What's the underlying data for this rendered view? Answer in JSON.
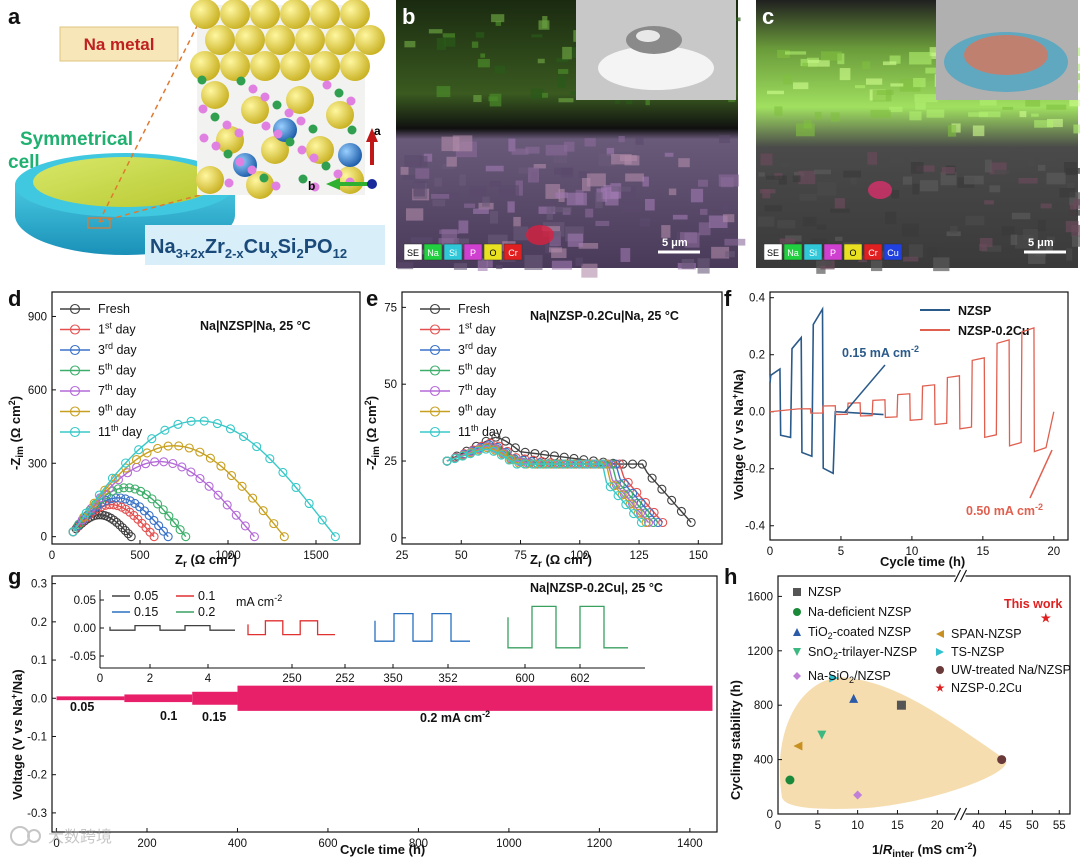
{
  "panels": {
    "a": {
      "label": "a",
      "na_metal": "Na metal",
      "cell_line1": "Symmetrical",
      "cell_line2": "cell",
      "formula": "Na3+2xZr2-xCuxSi2PO12",
      "axis_a": "a",
      "axis_b": "b"
    },
    "b": {
      "label": "b",
      "scale": "5 μm",
      "legend": [
        "SE",
        "Na",
        "Si",
        "P",
        "O",
        "Cr"
      ]
    },
    "c": {
      "label": "c",
      "scale": "5 μm",
      "legend": [
        "SE",
        "Na",
        "Si",
        "P",
        "O",
        "Cr",
        "Cu"
      ]
    }
  },
  "colors": {
    "fresh": "#404040",
    "d1": "#e45050",
    "d3": "#3a72c8",
    "d5": "#3cae6a",
    "d7": "#b46ad8",
    "d9": "#c8a020",
    "d11": "#38c8c8",
    "nzsp": "#2a5a8a",
    "nzsp_cu": "#e06050",
    "g_trace": "#e8206a",
    "blob": "#f5ddb0",
    "elem": [
      "#ffffff",
      "#20d040",
      "#30c8d8",
      "#d040d0",
      "#e8e020",
      "#e02020",
      "#2040e0"
    ]
  },
  "watermark": "大数跨境",
  "chart_data": [
    {
      "id": "d",
      "label": "d",
      "type": "line",
      "annotation": "Na|NZSP|Na, 25 °C",
      "xlabel": "Zr (Ω cm2)",
      "ylabel": "-Zim (Ω cm2)",
      "xlim": [
        0,
        1750
      ],
      "ylim": [
        -30,
        1000
      ],
      "xticks": [
        0,
        500,
        1000,
        1500
      ],
      "yticks": [
        0,
        300,
        600,
        900
      ],
      "legend": [
        "Fresh",
        "1st day",
        "3rd day",
        "5th day",
        "7th day",
        "9th day",
        "11th day"
      ],
      "series": [
        {
          "name": "Fresh",
          "x_start": 120,
          "x_end": 450,
          "peak": 85
        },
        {
          "name": "1st day",
          "x_start": 120,
          "x_end": 580,
          "peak": 130
        },
        {
          "name": "3rd day",
          "x_start": 120,
          "x_end": 660,
          "peak": 160
        },
        {
          "name": "5th day",
          "x_start": 120,
          "x_end": 760,
          "peak": 205
        },
        {
          "name": "7th day",
          "x_start": 120,
          "x_end": 1150,
          "peak": 320
        },
        {
          "name": "9th day",
          "x_start": 120,
          "x_end": 1320,
          "peak": 390
        },
        {
          "name": "11th day",
          "x_start": 120,
          "x_end": 1610,
          "peak": 500
        }
      ]
    },
    {
      "id": "e",
      "label": "e",
      "type": "line",
      "annotation": "Na|NZSP-0.2Cu|Na, 25 °C",
      "xlabel": "Zr (Ω cm2)",
      "ylabel": "-Zim (Ω cm2)",
      "xlim": [
        25,
        160
      ],
      "ylim": [
        -2,
        80
      ],
      "xticks": [
        25,
        50,
        75,
        100,
        125,
        150
      ],
      "yticks": [
        0,
        25,
        50,
        75
      ],
      "legend": [
        "Fresh",
        "1st day",
        "3rd day",
        "5th day",
        "7th day",
        "9th day",
        "11th day"
      ],
      "series": [
        {
          "name": "Fresh",
          "x_end": 147,
          "h": 33
        },
        {
          "name": "1st day",
          "x_end": 135,
          "h": 31
        },
        {
          "name": "3rd day",
          "x_end": 133,
          "h": 30.5
        },
        {
          "name": "5th day",
          "x_end": 131,
          "h": 30
        },
        {
          "name": "7th day",
          "x_end": 129,
          "h": 30
        },
        {
          "name": "9th day",
          "x_end": 128,
          "h": 29.5
        },
        {
          "name": "11th day",
          "x_end": 126,
          "h": 29
        }
      ]
    },
    {
      "id": "f",
      "label": "f",
      "type": "line",
      "xlabel": "Cycle time (h)",
      "ylabel": "Voltage (V vs Na+/Na)",
      "xlim": [
        0,
        21
      ],
      "ylim": [
        -0.45,
        0.42
      ],
      "xticks": [
        0,
        5,
        10,
        15,
        20
      ],
      "yticks": [
        -0.4,
        -0.2,
        0.0,
        0.2,
        0.4
      ],
      "legend": [
        "NZSP",
        "NZSP-0.2Cu"
      ],
      "annotations": [
        "0.15 mA cm-2",
        "0.50 mA cm-2"
      ],
      "series": [
        {
          "name": "NZSP",
          "step_amplitudes": [
            0.15,
            0.26,
            0.36
          ],
          "end_time": 8
        },
        {
          "name": "NZSP-0.2Cu",
          "step_amplitudes": [
            0.01,
            0.02,
            0.03,
            0.04,
            0.06,
            0.09,
            0.12,
            0.18,
            0.24,
            0.28
          ],
          "end_time": 20
        }
      ]
    },
    {
      "id": "g",
      "label": "g",
      "type": "line",
      "annotation": "Na|NZSP-0.2Cu|, 25 °C",
      "xlabel": "Cycle time (h)",
      "ylabel": "Voltage (V vs Na+/Na)",
      "xlim": [
        -10,
        1460
      ],
      "ylim": [
        -0.35,
        0.32
      ],
      "xticks": [
        0,
        200,
        400,
        600,
        800,
        1000,
        1200,
        1400
      ],
      "yticks": [
        -0.3,
        -0.2,
        -0.1,
        0.0,
        0.1,
        0.2,
        0.3
      ],
      "series": [
        {
          "current": "0.05",
          "from": 0,
          "to": 150,
          "amp": 0.005
        },
        {
          "current": "0.1",
          "from": 150,
          "to": 300,
          "amp": 0.01
        },
        {
          "current": "0.15",
          "from": 300,
          "to": 400,
          "amp": 0.017
        },
        {
          "current": "0.2 mA cm-2",
          "from": 400,
          "to": 1450,
          "amp": 0.033
        }
      ],
      "inset": {
        "legend": [
          "0.05",
          "0.1",
          "0.15",
          "0.2"
        ],
        "unit": "mA cm-2",
        "yticks": [
          0.05,
          0.0,
          -0.05
        ],
        "xticks": [
          "0",
          "2",
          "4",
          "250",
          "252",
          "350",
          "352",
          "600",
          "602"
        ]
      }
    },
    {
      "id": "h",
      "label": "h",
      "type": "scatter",
      "xlabel": "1/Rinter (mS cm-2)",
      "ylabel": "Cycling stability (h)",
      "xlim": [
        0,
        57
      ],
      "ylim": [
        0,
        1750
      ],
      "xticks": [
        0,
        5,
        10,
        15,
        20,
        40,
        45,
        50,
        55
      ],
      "yticks": [
        0,
        400,
        800,
        1200,
        1600
      ],
      "points": [
        {
          "name": "NZSP",
          "x": 15.5,
          "y": 800,
          "marker": "square",
          "color": "#555555"
        },
        {
          "name": "Na-deficient NZSP",
          "x": 1.5,
          "y": 250,
          "marker": "circle",
          "color": "#1a8a3a"
        },
        {
          "name": "TiO2-coated NZSP",
          "x": 9.5,
          "y": 850,
          "marker": "triangle-up",
          "color": "#2a5aa8"
        },
        {
          "name": "SnO2-trilayer-NZSP",
          "x": 5.5,
          "y": 580,
          "marker": "triangle-down",
          "color": "#3cb880"
        },
        {
          "name": "Na-SiO2/NZSP",
          "x": 10,
          "y": 140,
          "marker": "diamond",
          "color": "#c080d8"
        },
        {
          "name": "SPAN-NZSP",
          "x": 2.5,
          "y": 500,
          "marker": "triangle-left",
          "color": "#c89020"
        },
        {
          "name": "TS-NZSP",
          "x": 7,
          "y": 1000,
          "marker": "triangle-right",
          "color": "#30c0d0"
        },
        {
          "name": "UW-treated Na/NZSP",
          "x": 44.3,
          "y": 400,
          "marker": "hexagon",
          "color": "#6a3a3a"
        },
        {
          "name": "NZSP-0.2Cu",
          "x": 52.5,
          "y": 1440,
          "marker": "star",
          "color": "#e02020"
        }
      ],
      "this_work": "This work"
    }
  ]
}
